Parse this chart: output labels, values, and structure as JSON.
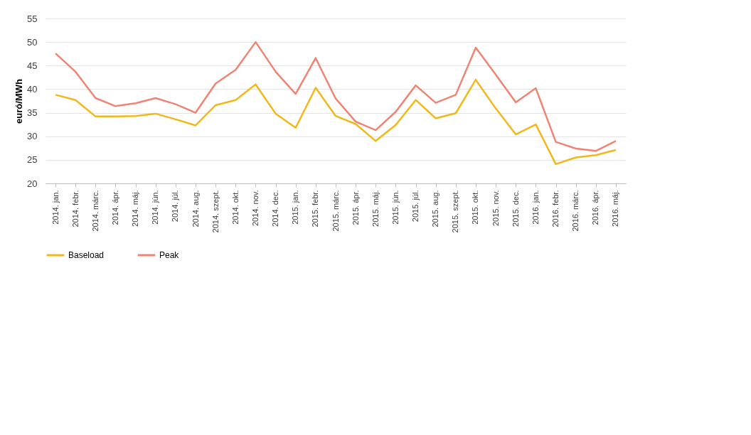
{
  "chart_data": {
    "type": "line",
    "ylabel": "euró/MWh",
    "categories": [
      "2014. jan.",
      "2014. febr.",
      "2014. márc.",
      "2014. ápr.",
      "2014. máj.",
      "2014. jún.",
      "2014. júl.",
      "2014. aug.",
      "2014. szept.",
      "2014. okt.",
      "2014. nov.",
      "2014. dec.",
      "2015. jan.",
      "2015. febr.",
      "2015. márc.",
      "2015. ápr.",
      "2015. máj.",
      "2015. jún.",
      "2015. júl.",
      "2015. aug.",
      "2015. szept.",
      "2015. okt.",
      "2015. nov.",
      "2015. dec.",
      "2016. jan.",
      "2016. febr.",
      "2016. márc.",
      "2016. ápr.",
      "2016. máj."
    ],
    "series": [
      {
        "name": "Baseload",
        "color": "#f2b81a",
        "values": [
          38.8,
          37.7,
          34.2,
          34.2,
          34.3,
          34.8,
          33.6,
          32.3,
          36.6,
          37.7,
          41.0,
          34.8,
          31.8,
          40.3,
          34.3,
          32.6,
          29.0,
          32.4,
          37.7,
          33.8,
          34.9,
          42.0,
          35.9,
          30.4,
          32.5,
          24.1,
          25.5,
          26.0,
          27.1
        ]
      },
      {
        "name": "Peak",
        "color": "#ef8474",
        "values": [
          47.6,
          43.7,
          38.1,
          36.4,
          37.0,
          38.1,
          36.8,
          35.0,
          41.2,
          44.1,
          50.0,
          43.7,
          39.0,
          46.6,
          38.0,
          33.1,
          31.3,
          35.2,
          40.8,
          37.1,
          38.8,
          48.8,
          43.1,
          37.2,
          40.2,
          28.8,
          27.4,
          26.9,
          29.0
        ]
      }
    ],
    "ylim": [
      20,
      55
    ],
    "yticks": [
      20,
      25,
      30,
      35,
      40,
      45,
      50,
      55
    ],
    "grid": "y",
    "legend": "bottom",
    "marker": "none",
    "line_style": "solid"
  }
}
